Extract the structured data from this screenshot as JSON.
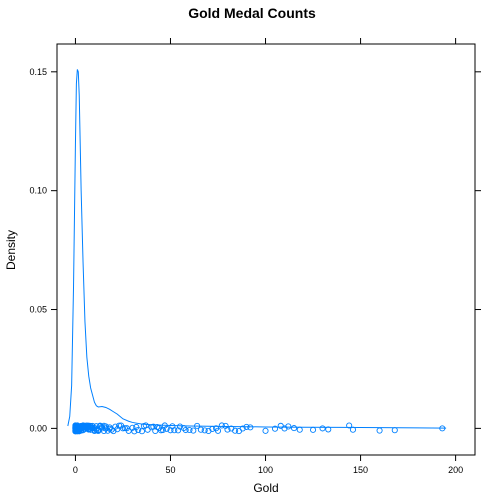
{
  "chart_data": {
    "type": "density",
    "title": "Gold Medal Counts",
    "xlabel": "Gold",
    "ylabel": "Density",
    "xlim": [
      -9.7,
      210.2
    ],
    "ylim": [
      -0.0112,
      0.1617
    ],
    "x_ticks": [
      0,
      50,
      100,
      150,
      200
    ],
    "x_tick_labels": [
      "0",
      "50",
      "100",
      "150",
      "200"
    ],
    "y_ticks": [
      0,
      0.05,
      0.1,
      0.15
    ],
    "y_tick_labels": [
      "0.00",
      "0.05",
      "0.10",
      "0.15"
    ],
    "grid": false,
    "series_color": "#0080ff",
    "density_curve": {
      "x": [
        -4,
        -3,
        -2,
        -1,
        0,
        0.5,
        1,
        1.5,
        2,
        2.5,
        3,
        4,
        5,
        6,
        7,
        8,
        9,
        10,
        11,
        12,
        14,
        16,
        18,
        20,
        22,
        25,
        28,
        30,
        35,
        40,
        50,
        60,
        70,
        80,
        90,
        100,
        120,
        140,
        160,
        180,
        195
      ],
      "y": [
        0.001,
        0.005,
        0.018,
        0.06,
        0.12,
        0.145,
        0.151,
        0.15,
        0.14,
        0.12,
        0.1,
        0.07,
        0.045,
        0.03,
        0.022,
        0.017,
        0.014,
        0.011,
        0.0095,
        0.009,
        0.0092,
        0.0088,
        0.008,
        0.007,
        0.006,
        0.004,
        0.003,
        0.0025,
        0.0018,
        0.0015,
        0.0012,
        0.001,
        0.0009,
        0.0008,
        0.0007,
        0.0006,
        0.0005,
        0.0004,
        0.0003,
        0.0002,
        0.0001
      ]
    },
    "rug_points_gold": [
      0,
      0,
      0,
      0,
      0,
      0,
      0,
      0,
      0,
      0,
      0,
      0,
      0,
      0,
      0,
      0,
      0,
      0,
      0,
      0,
      1,
      1,
      1,
      1,
      1,
      1,
      1,
      1,
      1,
      1,
      1,
      1,
      1,
      1,
      1,
      1,
      2,
      2,
      2,
      2,
      2,
      2,
      2,
      2,
      2,
      2,
      2,
      2,
      3,
      3,
      3,
      3,
      3,
      3,
      3,
      3,
      3,
      4,
      4,
      4,
      4,
      4,
      4,
      4,
      5,
      5,
      5,
      5,
      5,
      5,
      6,
      6,
      6,
      6,
      6,
      7,
      7,
      7,
      7,
      7,
      8,
      8,
      8,
      8,
      9,
      9,
      9,
      9,
      10,
      10,
      10,
      11,
      11,
      11,
      12,
      12,
      12,
      13,
      13,
      14,
      14,
      15,
      15,
      16,
      16,
      17,
      18,
      18,
      19,
      20,
      21,
      22,
      23,
      24,
      25,
      26,
      27,
      28,
      30,
      31,
      32,
      33,
      35,
      36,
      37,
      38,
      40,
      41,
      42,
      43,
      44,
      45,
      46,
      47,
      48,
      50,
      51,
      52,
      54,
      55,
      57,
      58,
      60,
      62,
      64,
      66,
      68,
      70,
      72,
      74,
      75,
      77,
      79,
      80,
      82,
      84,
      86,
      88,
      90,
      92,
      100,
      105,
      108,
      110,
      112,
      115,
      118,
      125,
      130,
      133,
      144,
      146,
      160,
      168,
      193
    ]
  }
}
